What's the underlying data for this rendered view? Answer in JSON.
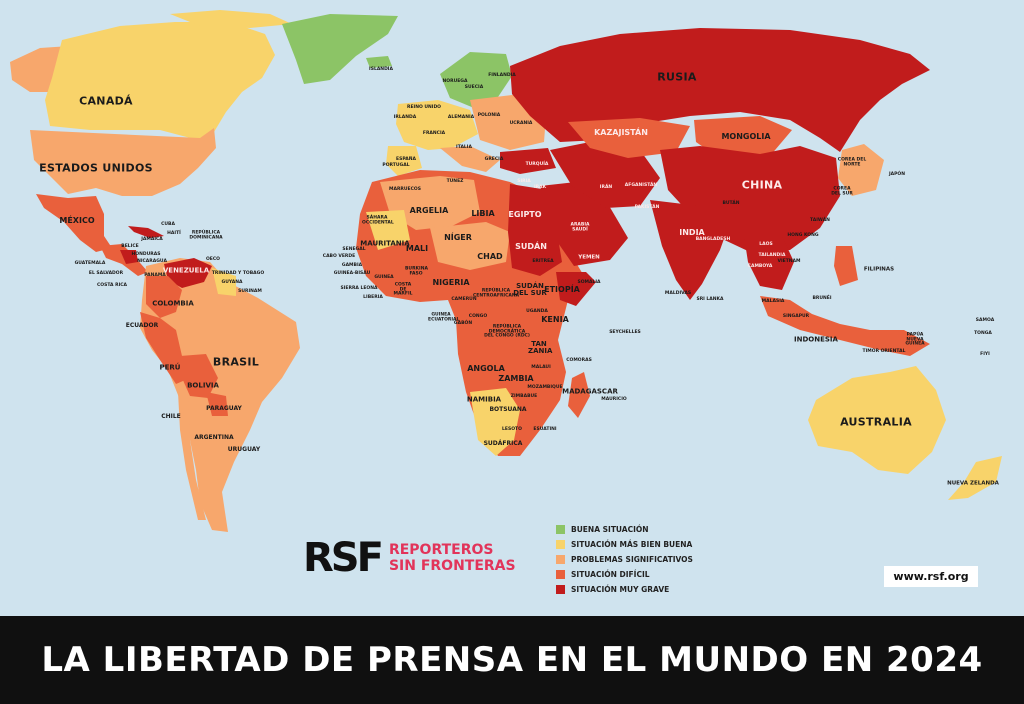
{
  "title": "LA LIBERTAD DE PRENSA EN EL MUNDO EN 2024",
  "brand": {
    "mark": "RSF",
    "line1": "REPORTEROS",
    "line2": "SIN FRONTERAS",
    "url": "www.rsf.org"
  },
  "legend": [
    {
      "label": "BUENA SITUACIÓN",
      "color": "#8cc466"
    },
    {
      "label": "SITUACIÓN MÁS BIEN BUENA",
      "color": "#f8d36a"
    },
    {
      "label": "PROBLEMAS SIGNIFICATIVOS",
      "color": "#f7a76c"
    },
    {
      "label": "SITUACIÓN DIFÍCIL",
      "color": "#e9603c"
    },
    {
      "label": "SITUACIÓN MUY GRAVE",
      "color": "#c11c1c"
    }
  ],
  "colors": {
    "ocean": "#cfe3ee",
    "banner": "#101010",
    "brand_pink": "#e2345a"
  },
  "labels": {
    "rusia": "RUSIA",
    "canada": "CANADÁ",
    "estados_unidos": "ESTADOS UNIDOS",
    "china": "CHINA",
    "brasil": "BRASIL",
    "australia": "AUSTRALIA",
    "india": "INDIA",
    "mongolia": "MONGOLIA",
    "kazajistan": "KAZAJISTÁN",
    "argelia": "ARGELIA",
    "libia": "LIBIA",
    "egipto": "EGIPTO",
    "sudan": "SUDÁN",
    "chad": "CHAD",
    "niger": "NÍGER",
    "mali": "MALI",
    "mauritania": "MAURITANIA",
    "nigeria": "NIGERIA",
    "etiopia": "ETIOPÍA",
    "sudan_del_sur": "SUDÁN DEL SUR",
    "kenia": "KENIA",
    "tanzania": "TAN ZANIA",
    "angola": "ANGOLA",
    "zambia": "ZAMBIA",
    "namibia": "NAMIBIA",
    "botsuana": "BOTSUANA",
    "sudafrica": "SUDÁFRICA",
    "madagascar": "MADAGASCAR",
    "mozambique": "MOZAMBIQUE",
    "rdc": "REPÚBLICA DEMOCRÁTICA DEL CONGO (RDC)",
    "rca": "REPÚBLICA CENTROAFRICANA",
    "somalia": "SOMALIA",
    "yemen": "YEMEN",
    "arabia_saudi": "ARABIA SAUDÍ",
    "irak": "IRAK",
    "iran": "IRÁN",
    "turquia": "TURQUÍA",
    "siria": "SIRIA",
    "afganistan": "AFGANISTÁN",
    "pakistan": "PAKISTÁN",
    "mexico": "MÉXICO",
    "venezuela": "VENEZUELA",
    "colombia": "COLOMBIA",
    "peru": "PERÚ",
    "bolivia": "BOLIVIA",
    "paraguay": "PARAGUAY",
    "chile": "CHILE",
    "argentina": "ARGENTINA",
    "uruguay": "URUGUAY",
    "ecuador": "ECUADOR",
    "cuba": "CUBA",
    "haiti": "HAITÍ",
    "republica_dominicana": "REPÚBLICA DOMINICANA",
    "jamaica": "JAMAICA",
    "belice": "BELICE",
    "honduras": "HONDURAS",
    "nicaragua": "NICARAGUA",
    "guatemala": "GUATEMALA",
    "el_salvador": "EL SALVADOR",
    "costa_rica": "COSTA RICA",
    "panama": "PANAMÁ",
    "trinidad": "TRINIDAD Y TOBAGO",
    "guyana": "GUYANA",
    "surinam": "SURINAM",
    "oeco": "OECO",
    "islandia": "ISLANDIA",
    "noruega": "NORUEGA",
    "suecia": "SUECIA",
    "finlandia": "FINLANDIA",
    "reino_unido": "REINO UNIDO",
    "irlanda": "IRLANDA",
    "francia": "FRANCIA",
    "espana": "ESPAÑA",
    "portugal": "PORTUGAL",
    "alemania": "ALEMANIA",
    "polonia": "POLONIA",
    "ucrania": "UCRANIA",
    "italia": "ITALIA",
    "grecia": "GRECIA",
    "marruecos": "MARRUECOS",
    "tunez": "TÚNEZ",
    "sahara_occidental": "SÁHARA OCCIDENTAL",
    "senegal": "SENEGAL",
    "cabo_verde": "CABO VERDE",
    "gambia": "GAMBIA",
    "guinea_bisau": "GUINEA-BISÁU",
    "sierra_leona": "SIERRA LEONA",
    "liberia": "LIBERIA",
    "guinea": "GUINEA",
    "costa_de_marfil": "COSTA DE MARFIL",
    "burkina_faso": "BURKINA FASO",
    "camerun": "CAMERÚN",
    "gabon": "GABÓN",
    "congo": "CONGO",
    "guinea_ecuatorial": "GUINEA ECUATORIAL",
    "uganda": "UGANDA",
    "malaui": "MALAUI",
    "zimbabue": "ZIMBABUE",
    "lesoto": "LESOTO",
    "esuatini": "ESUATINI",
    "comoras": "COMORAS",
    "mauricio": "MAURICIO",
    "seychelles": "SEYCHELLES",
    "eritrea": "ERITREA",
    "japon": "JAPÓN",
    "corea_norte": "COREA DEL NORTE",
    "corea_sur": "COREA DEL SUR",
    "taiwan": "TAIWÁN",
    "hong_kong": "HONG KONG",
    "filipinas": "FILIPINAS",
    "vietnam": "VIETNAM",
    "laos": "LAOS",
    "tailandia": "TAILANDIA",
    "camboya": "CAMBOYA",
    "malasia": "MALASIA",
    "brunei": "BRUNÉI",
    "singapur": "SINGAPUR",
    "indonesia": "INDONESIA",
    "timor_oriental": "TIMOR ORIENTAL",
    "papua": "PAPÚA NUEVA GUINEA",
    "bangladesh": "BANGLADESH",
    "sri_lanka": "SRI LANKA",
    "maldivas": "MALDIVAS",
    "butan": "BUTÁN",
    "nueva_zelanda": "NUEVA ZELANDA",
    "samoa": "SAMOA",
    "tonga": "TONGA",
    "fiyi": "FIYI"
  }
}
